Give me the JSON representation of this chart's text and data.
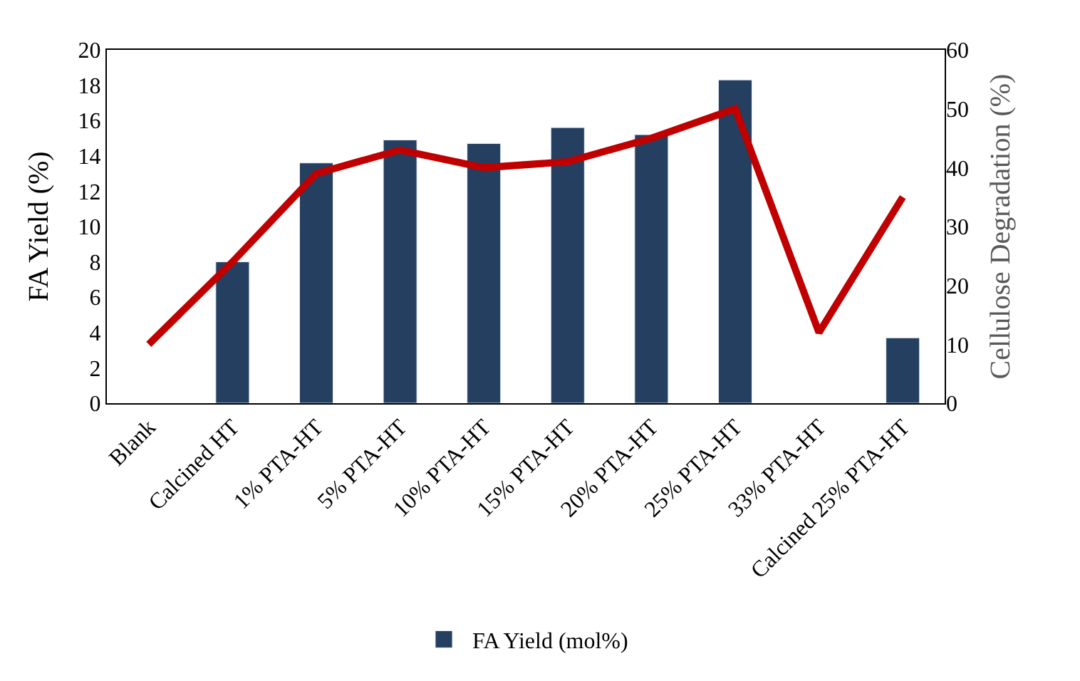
{
  "chart_data": {
    "type": "bar",
    "categories": [
      "Blank",
      "Calcined HT",
      "1% PTA-HT",
      "5% PTA-HT",
      "10% PTA-HT",
      "15% PTA-HT",
      "20% PTA-HT",
      "25% PTA-HT",
      "33% PTA-HT",
      "Calcined 25% PTA-HT"
    ],
    "ylabel": "FA Yield (%)",
    "y2label": "Cellulose Degradation (%)",
    "ylim": [
      0,
      20
    ],
    "yticks": [
      0,
      2,
      4,
      6,
      8,
      10,
      12,
      14,
      16,
      18,
      20
    ],
    "y2lim": [
      0,
      60
    ],
    "y2ticks": [
      0,
      10,
      20,
      30,
      40,
      50,
      60
    ],
    "legend": "bottom",
    "series": [
      {
        "name": "FA Yield (mol%)",
        "color": "#243f60",
        "values": [
          null,
          8.0,
          13.6,
          14.9,
          14.7,
          15.6,
          15.2,
          18.3,
          null,
          3.7
        ]
      },
      {
        "type": "line",
        "axis": "y2",
        "color": "#c00000",
        "values": [
          10,
          24,
          39,
          43,
          40,
          41,
          45,
          50,
          12,
          35
        ]
      }
    ]
  }
}
